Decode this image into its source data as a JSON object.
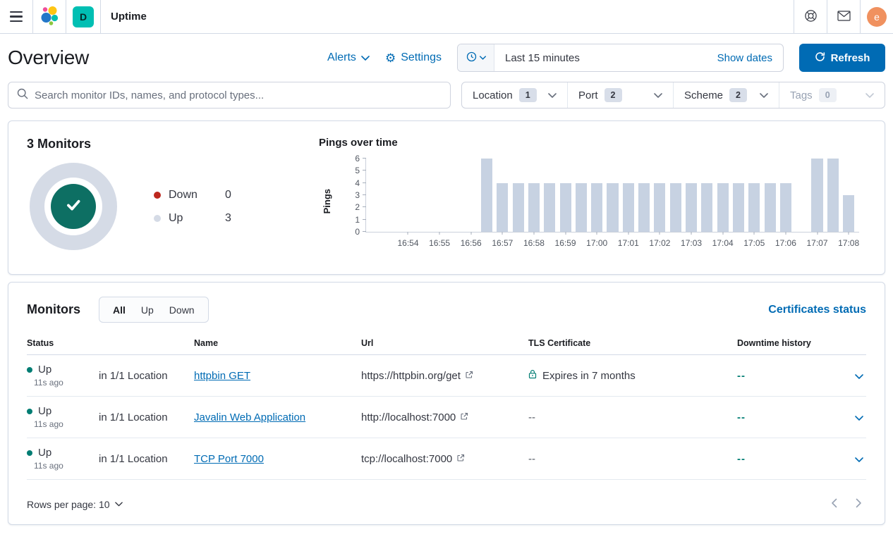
{
  "header": {
    "breadcrumb": "Uptime",
    "space_initial": "D",
    "avatar_initial": "e"
  },
  "toolbar": {
    "title": "Overview",
    "alerts_label": "Alerts",
    "settings_label": "Settings",
    "time_range": "Last 15 minutes",
    "show_dates_label": "Show dates",
    "refresh_label": "Refresh"
  },
  "search": {
    "placeholder": "Search monitor IDs, names, and protocol types..."
  },
  "filters": [
    {
      "label": "Location",
      "count": "1",
      "disabled": false
    },
    {
      "label": "Port",
      "count": "2",
      "disabled": false
    },
    {
      "label": "Scheme",
      "count": "2",
      "disabled": false
    },
    {
      "label": "Tags",
      "count": "0",
      "disabled": true
    }
  ],
  "stats": {
    "title": "3 Monitors",
    "legend": [
      {
        "label": "Down",
        "value": "0",
        "color": "#BD271E"
      },
      {
        "label": "Up",
        "value": "3",
        "color": "#D5DBE6"
      }
    ]
  },
  "chart_data": {
    "type": "bar",
    "title": "Pings over time",
    "xlabel": "",
    "ylabel": "Pings",
    "ylim": [
      0,
      6
    ],
    "yticks": [
      0,
      1,
      2,
      3,
      4,
      5,
      6
    ],
    "xticks": [
      "16:54",
      "16:55",
      "16:56",
      "16:57",
      "16:58",
      "16:59",
      "17:00",
      "17:01",
      "17:02",
      "17:03",
      "17:04",
      "17:05",
      "17:06",
      "17:07",
      "17:08"
    ],
    "x_start": "16:52:40",
    "x_end": "17:08:20",
    "bar_color": "#C7D2E2",
    "grid": false,
    "x": [
      "16:56:30",
      "16:57:00",
      "16:57:30",
      "16:58:00",
      "16:58:30",
      "16:59:00",
      "16:59:30",
      "17:00:00",
      "17:00:30",
      "17:01:00",
      "17:01:30",
      "17:02:00",
      "17:02:30",
      "17:03:00",
      "17:03:30",
      "17:04:00",
      "17:04:30",
      "17:05:00",
      "17:05:30",
      "17:06:00",
      "17:07:00",
      "17:07:30",
      "17:08:00"
    ],
    "values": [
      6,
      4,
      4,
      4,
      4,
      4,
      4,
      4,
      4,
      4,
      4,
      4,
      4,
      4,
      4,
      4,
      4,
      4,
      4,
      4,
      6,
      6,
      3
    ]
  },
  "monitors": {
    "title": "Monitors",
    "tabs": [
      {
        "label": "All",
        "active": true
      },
      {
        "label": "Up",
        "active": false
      },
      {
        "label": "Down",
        "active": false
      }
    ],
    "certificates_link": "Certificates status",
    "columns": [
      "Status",
      "Name",
      "Url",
      "TLS Certificate",
      "Downtime history"
    ],
    "rows": [
      {
        "status": "Up",
        "ago": "11s ago",
        "location": "in 1/1 Location",
        "name": "httpbin GET",
        "url": "https://httpbin.org/get",
        "tls": "Expires in 7 months",
        "tls_secure": true,
        "downtime": "--"
      },
      {
        "status": "Up",
        "ago": "11s ago",
        "location": "in 1/1 Location",
        "name": "Javalin Web Application",
        "url": "http://localhost:7000",
        "tls": "--",
        "tls_secure": false,
        "downtime": "--"
      },
      {
        "status": "Up",
        "ago": "11s ago",
        "location": "in 1/1 Location",
        "name": "TCP Port 7000",
        "url": "tcp://localhost:7000",
        "tls": "--",
        "tls_secure": false,
        "downtime": "--"
      }
    ],
    "rows_per_page_label": "Rows per page: 10"
  },
  "colors": {
    "primary": "#006BB4",
    "success": "#017D73",
    "down_red": "#BD271E",
    "donut_ring": "#D5DBE6",
    "donut_center": "#0D6F63",
    "bar": "#C7D2E2"
  }
}
